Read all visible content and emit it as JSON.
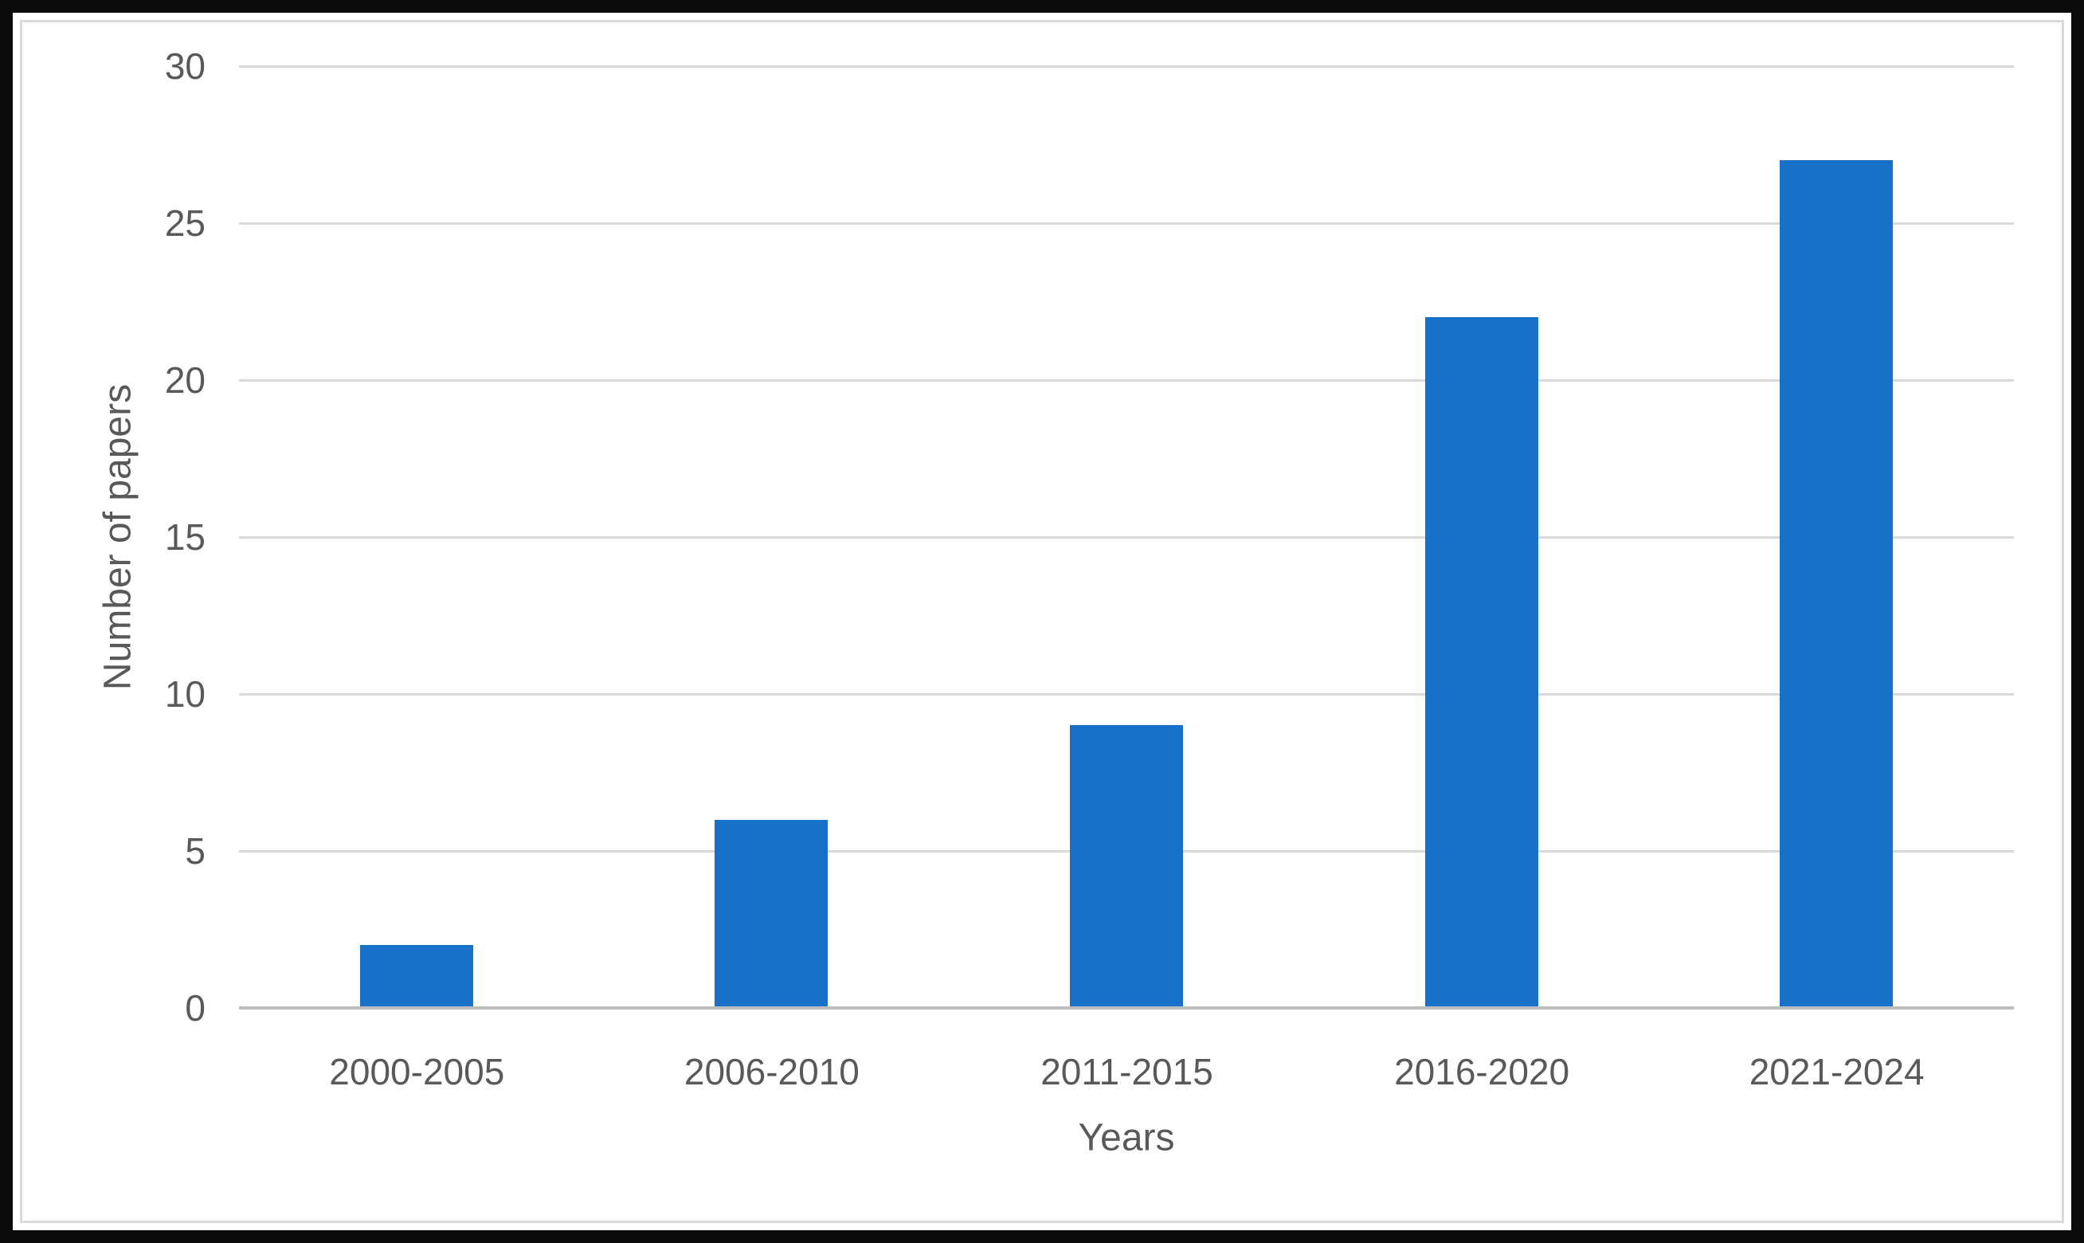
{
  "chart_data": {
    "type": "bar",
    "title": "",
    "categories": [
      "2000-2005",
      "2006-2010",
      "2011-2015",
      "2016-2020",
      "2021-2024"
    ],
    "values": [
      2,
      6,
      9,
      22,
      27
    ],
    "xlabel": "Years",
    "ylabel": "Number of papers",
    "ylim": [
      0,
      30
    ],
    "yticks": [
      0,
      5,
      10,
      15,
      20,
      25,
      30
    ],
    "grid": true,
    "legend_position": "none",
    "colors": {
      "bar": "#1771c9",
      "gridline": "#d9d9d9",
      "axis_line": "#bfbfbf",
      "text": "#595959",
      "outer_frame": "#0b0b0b",
      "chart_border": "#d9d9d9",
      "background": "#ffffff"
    }
  }
}
